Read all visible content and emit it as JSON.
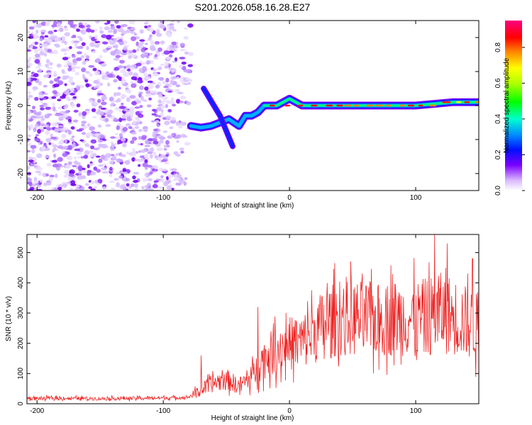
{
  "figure_title": "S201.2026.058.16.28.E27",
  "chart_data": [
    {
      "type": "heatmap",
      "title": "S201.2026.058.16.28.E27",
      "xlabel": "Height of straight line (km)",
      "ylabel": "Frequency (Hz)",
      "xlim": [
        -208,
        150
      ],
      "ylim": [
        -25,
        25
      ],
      "xticks": [
        -200,
        -100,
        0,
        100
      ],
      "yticks": [
        -20,
        -10,
        0,
        10,
        20
      ],
      "colorbar": {
        "label": "Normalized spectral amplitude",
        "range": [
          0,
          0.95
        ],
        "ticks": [
          0.0,
          0.2,
          0.4,
          0.6,
          0.8
        ]
      },
      "features": {
        "noise_region_x_range": [
          -208,
          -78
        ],
        "doppler_track": [
          [
            -78,
            -6
          ],
          [
            -70,
            -6.5
          ],
          [
            -62,
            -6
          ],
          [
            -55,
            -5
          ],
          [
            -48,
            -4
          ],
          [
            -40,
            -6
          ],
          [
            -35,
            -3
          ],
          [
            -30,
            -3
          ],
          [
            -25,
            -2
          ],
          [
            -20,
            0
          ],
          [
            -10,
            0
          ],
          [
            0,
            2
          ],
          [
            10,
            0
          ],
          [
            50,
            0
          ],
          [
            100,
            0
          ],
          [
            130,
            1
          ],
          [
            150,
            1
          ]
        ],
        "branch_up": [
          [
            -68,
            5
          ],
          [
            -55,
            -3
          ],
          [
            -45,
            -12
          ]
        ]
      }
    },
    {
      "type": "line",
      "xlabel": "Height of straight line (km)",
      "ylabel": "SNR (10 * v/v)",
      "xlim": [
        -208,
        150
      ],
      "ylim": [
        0,
        560
      ],
      "xticks": [
        -200,
        -100,
        0,
        100
      ],
      "yticks": [
        0,
        100,
        200,
        300,
        400,
        500
      ],
      "color": "#ee2222",
      "series": [
        {
          "name": "SNR",
          "x": [
            -208,
            -180,
            -150,
            -120,
            -90,
            -80,
            -70,
            -60,
            -50,
            -40,
            -30,
            -20,
            -10,
            0,
            10,
            20,
            30,
            40,
            50,
            60,
            70,
            80,
            90,
            100,
            110,
            120,
            130,
            140,
            150
          ],
          "y": [
            18,
            18,
            17,
            18,
            20,
            22,
            45,
            70,
            80,
            60,
            90,
            150,
            180,
            200,
            205,
            240,
            270,
            280,
            285,
            280,
            275,
            285,
            285,
            280,
            290,
            300,
            290,
            270,
            250
          ]
        }
      ],
      "peaks": [
        [
          115,
          560
        ],
        [
          125,
          530
        ],
        [
          145,
          480
        ],
        [
          45,
          420
        ],
        [
          -25,
          320
        ],
        [
          -70,
          160
        ]
      ]
    }
  ]
}
